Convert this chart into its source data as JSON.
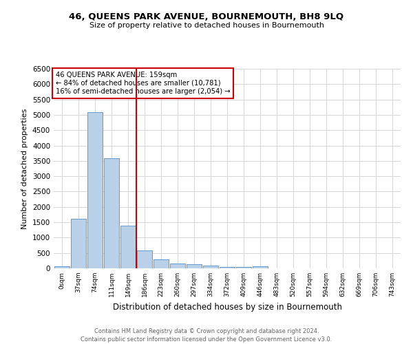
{
  "title": "46, QUEENS PARK AVENUE, BOURNEMOUTH, BH8 9LQ",
  "subtitle": "Size of property relative to detached houses in Bournemouth",
  "xlabel": "Distribution of detached houses by size in Bournemouth",
  "ylabel": "Number of detached properties",
  "footnote1": "Contains HM Land Registry data © Crown copyright and database right 2024.",
  "footnote2": "Contains public sector information licensed under the Open Government Licence v3.0.",
  "bin_labels": [
    "0sqm",
    "37sqm",
    "74sqm",
    "111sqm",
    "149sqm",
    "186sqm",
    "223sqm",
    "260sqm",
    "297sqm",
    "334sqm",
    "372sqm",
    "409sqm",
    "446sqm",
    "483sqm",
    "520sqm",
    "557sqm",
    "594sqm",
    "632sqm",
    "669sqm",
    "706sqm",
    "743sqm"
  ],
  "bar_values": [
    75,
    1620,
    5080,
    3580,
    1400,
    590,
    300,
    160,
    140,
    100,
    45,
    35,
    60,
    0,
    0,
    0,
    0,
    0,
    0,
    0,
    0
  ],
  "bar_color": "#b8d0e8",
  "bar_edge_color": "#6699cc",
  "ylim": [
    0,
    6500
  ],
  "yticks": [
    0,
    500,
    1000,
    1500,
    2000,
    2500,
    3000,
    3500,
    4000,
    4500,
    5000,
    5500,
    6000,
    6500
  ],
  "property_bin_index": 4,
  "vline_color": "#cc0000",
  "annotation_text": "46 QUEENS PARK AVENUE: 159sqm\n← 84% of detached houses are smaller (10,781)\n16% of semi-detached houses are larger (2,054) →",
  "annotation_box_color": "#ffffff",
  "annotation_box_edge": "#cc0000",
  "background_color": "#ffffff",
  "grid_color": "#d0d0d0"
}
